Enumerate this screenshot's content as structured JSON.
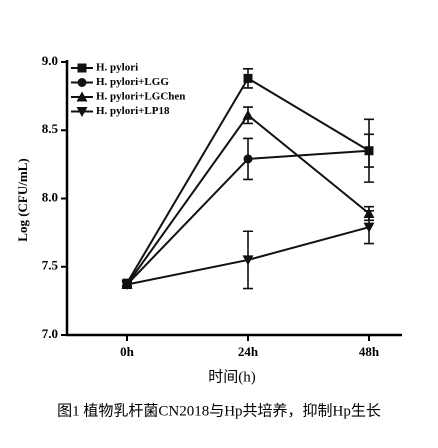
{
  "chart_data": {
    "type": "line",
    "y_label": "Log (CFU/mL)",
    "x_label": "时间(h)",
    "caption": "图1 植物乳杆菌CN2018与Hp共培养，抑制Hp生长",
    "categories": [
      "0h",
      "24h",
      "48h"
    ],
    "ylim": [
      7,
      9
    ],
    "yticks": [
      {
        "value": 7,
        "label": "7.0"
      },
      {
        "value": 7.5,
        "label": "7.5"
      },
      {
        "value": 8,
        "label": "8.0"
      },
      {
        "value": 8.5,
        "label": "8.5"
      },
      {
        "value": 9,
        "label": "9.0"
      }
    ],
    "legend": "top-left",
    "series": [
      {
        "name": "H. pylori",
        "color": "#111111",
        "marker": "square",
        "values": [
          7.38,
          8.88,
          8.35
        ],
        "errors": [
          0.02,
          0.07,
          0.23
        ]
      },
      {
        "name": "H. pylori+LGG",
        "color": "#111111",
        "marker": "circle",
        "values": [
          7.37,
          8.29,
          8.35
        ],
        "errors": [
          0.02,
          0.15,
          0.12
        ]
      },
      {
        "name": "H. pylori+LGChen",
        "color": "#111111",
        "marker": "triangle-up",
        "values": [
          7.37,
          8.61,
          7.89
        ],
        "errors": [
          0.02,
          0.06,
          0.05
        ]
      },
      {
        "name": "H. pylori+LP18",
        "color": "#111111",
        "marker": "triangle-down",
        "values": [
          7.37,
          7.55,
          7.79
        ],
        "errors": [
          0.02,
          0.21,
          0.12
        ]
      }
    ]
  }
}
